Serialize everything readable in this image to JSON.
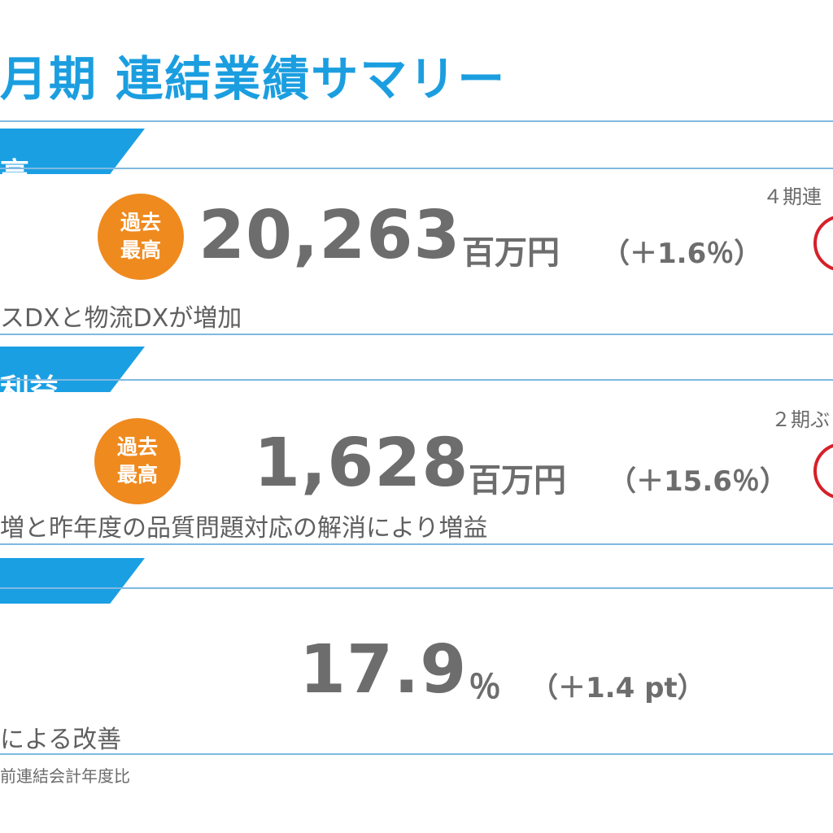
{
  "title": "月期 連結業績サマリー",
  "sections": [
    {
      "tab_label": "高",
      "badge": "過去\n最高",
      "value": "20,263",
      "unit": "百万円",
      "change": "（＋1.6％）",
      "streak": "４期連",
      "description": "スDXと物流DXが増加"
    },
    {
      "tab_label": "利益",
      "badge": "過去\n最高",
      "value": "1,628",
      "unit": "百万円",
      "change": "（＋15.6％）",
      "streak": "２期ぶ",
      "description": "増と昨年度の品質問題対応の解消により増益"
    },
    {
      "tab_label": "",
      "value": "17.9",
      "unit": "％",
      "change": "（＋1.4 pt）",
      "description": "による改善"
    }
  ],
  "footnote": "前連結会計年度比",
  "colors": {
    "title": "#1b9ee0",
    "tab": "#1a9fe3",
    "badge": "#ef8a1f",
    "stamp": "#d6202a",
    "text": "#6d6d6d"
  }
}
